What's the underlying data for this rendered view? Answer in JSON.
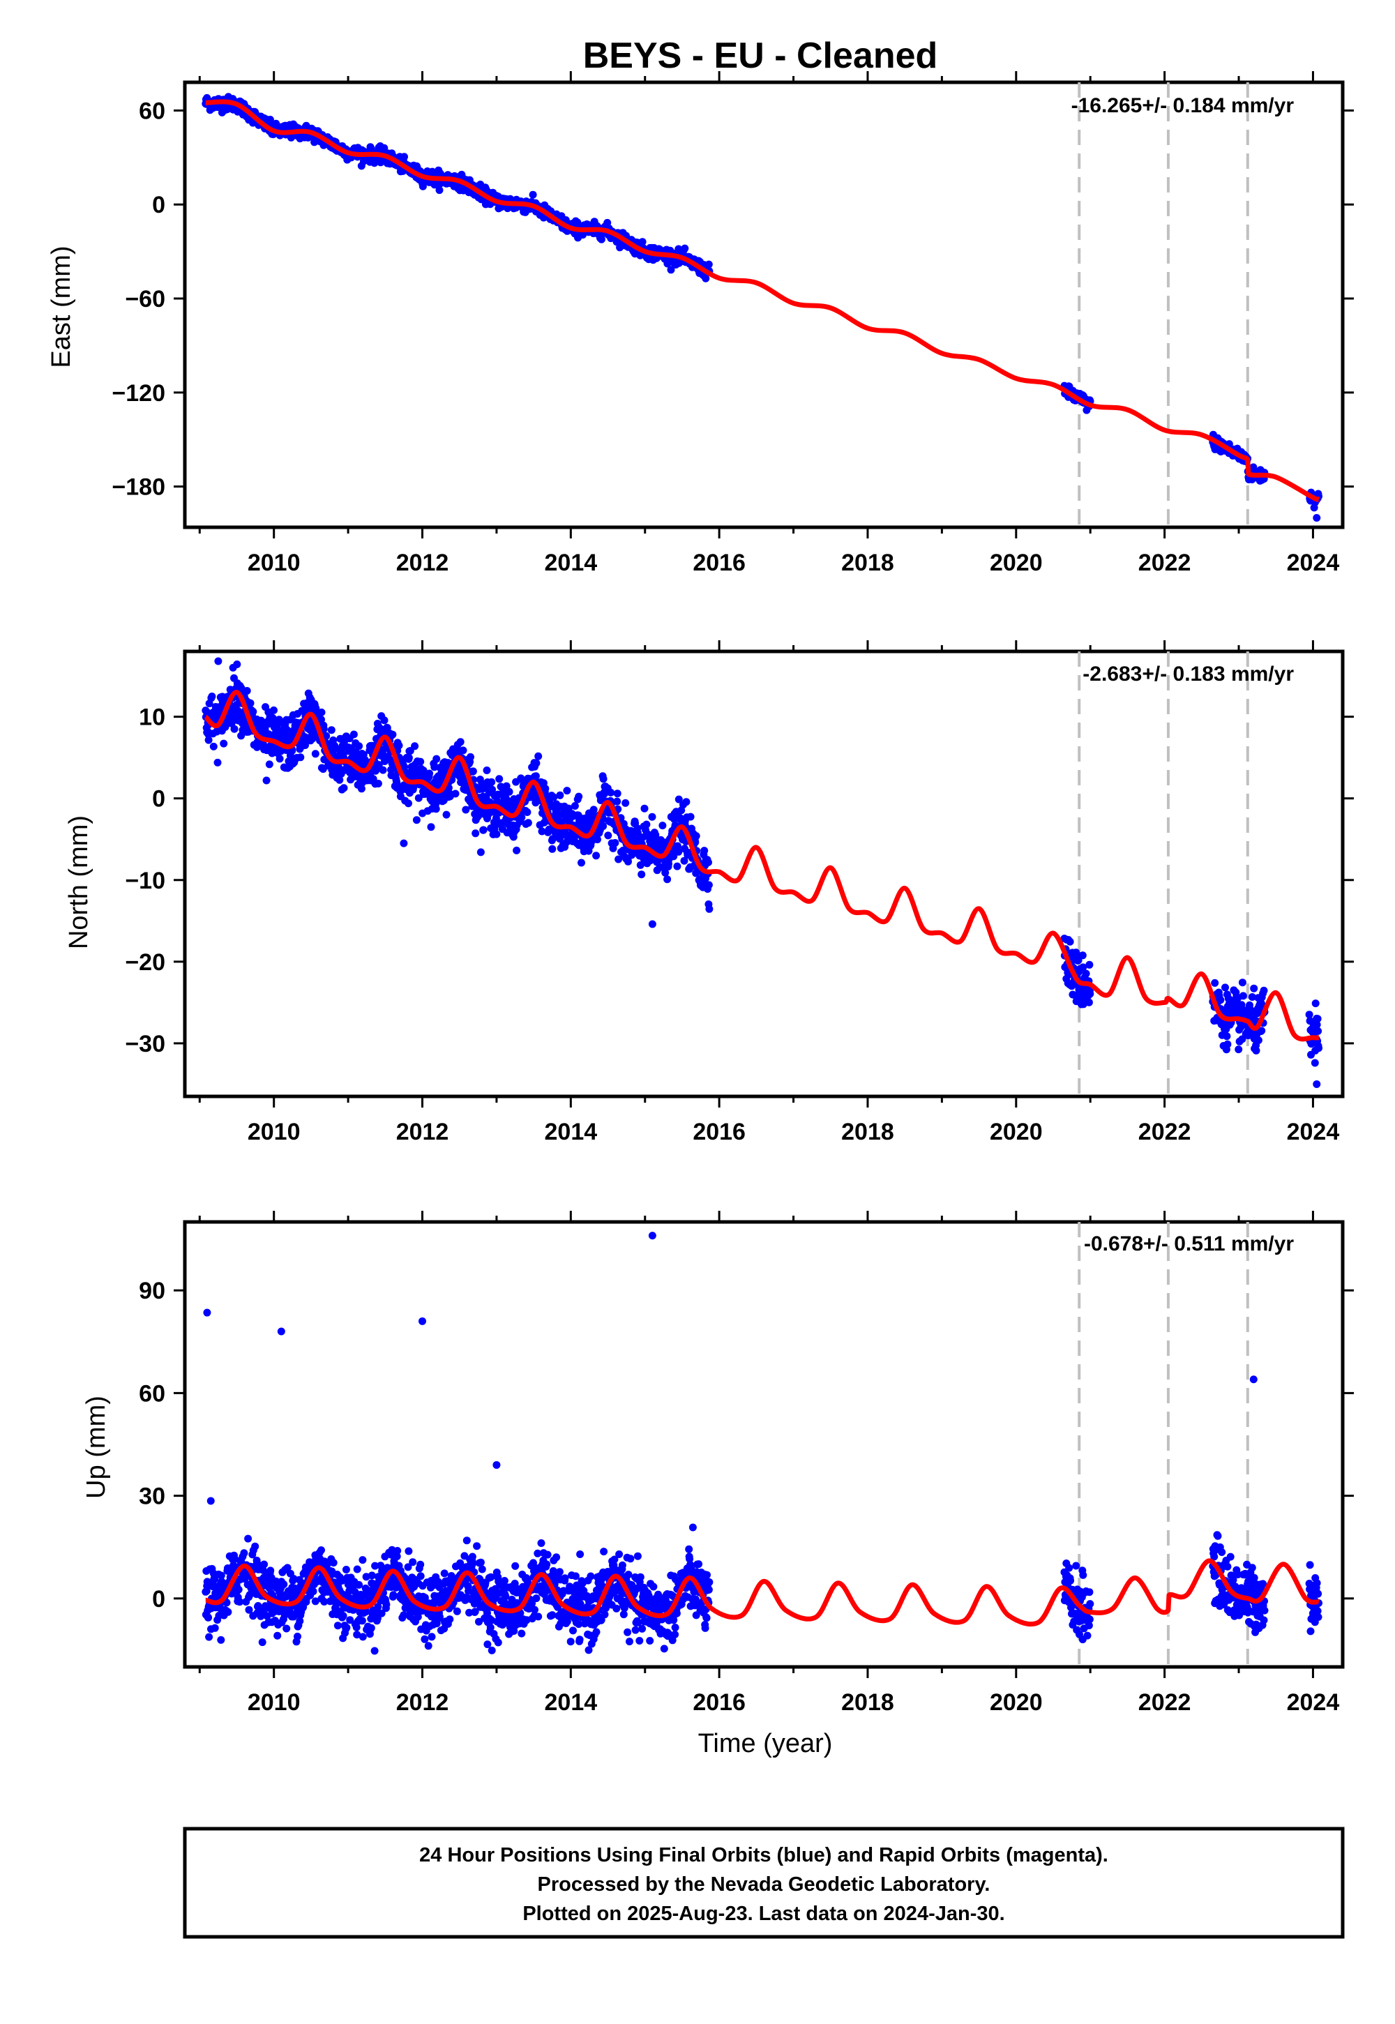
{
  "title": "BEYS  - EU - Cleaned",
  "xlabel": "Time (year)",
  "x_ticks": [
    "2010",
    "2012",
    "2014",
    "2016",
    "2018",
    "2020",
    "2022",
    "2024"
  ],
  "colors": {
    "final_orbits": "#0000ff",
    "model": "#ff0000",
    "breaks": "#c0c0c0",
    "frame": "#000000"
  },
  "footer": {
    "line1": "24 Hour Positions Using Final Orbits (blue) and Rapid Orbits (magenta).",
    "line2": "Processed by the Nevada Geodetic Laboratory.",
    "line3": "Plotted on 2025-Aug-23. Last data on 2024-Jan-30."
  },
  "chart_data": [
    {
      "type": "scatter",
      "panel": "east",
      "ylabel": "East (mm)",
      "rate_text": "-16.265+/- 0.184 mm/yr",
      "rate_mm_per_yr": -16.265,
      "xlim": [
        2008.8,
        2024.4
      ],
      "ylim": [
        -206,
        78
      ],
      "y_ticks": [
        60,
        0,
        -60,
        -120,
        -180
      ],
      "y_tick_labels": [
        "60",
        "0",
        "−60",
        "−120",
        "−180"
      ],
      "break_years": [
        2020.85,
        2022.05,
        2023.12
      ],
      "data_segments": [
        [
          2009.08,
          2015.87
        ],
        [
          2020.65,
          2021.0
        ],
        [
          2022.65,
          2023.35
        ],
        [
          2023.95,
          2024.08
        ]
      ],
      "model_points": [
        [
          2009.08,
          65
        ],
        [
          2009.5,
          64
        ],
        [
          2010.0,
          47
        ],
        [
          2010.5,
          46
        ],
        [
          2011.0,
          33
        ],
        [
          2011.5,
          31
        ],
        [
          2012.0,
          18
        ],
        [
          2012.5,
          15
        ],
        [
          2013.0,
          2
        ],
        [
          2013.5,
          -1
        ],
        [
          2014.0,
          -15
        ],
        [
          2014.5,
          -17
        ],
        [
          2015.0,
          -30
        ],
        [
          2015.5,
          -34
        ],
        [
          2016.0,
          -47
        ],
        [
          2016.5,
          -50
        ],
        [
          2017.0,
          -63
        ],
        [
          2017.5,
          -66
        ],
        [
          2018.0,
          -79
        ],
        [
          2018.5,
          -82
        ],
        [
          2019.0,
          -95
        ],
        [
          2019.5,
          -99
        ],
        [
          2020.0,
          -111
        ],
        [
          2020.5,
          -115
        ],
        [
          2021.0,
          -128
        ],
        [
          2021.5,
          -131
        ],
        [
          2022.0,
          -144
        ],
        [
          2022.5,
          -147
        ],
        [
          2023.0,
          -160
        ],
        [
          2023.12,
          -163
        ],
        [
          2023.13,
          -172
        ],
        [
          2023.5,
          -174
        ],
        [
          2024.0,
          -187
        ],
        [
          2024.08,
          -188
        ]
      ],
      "outliers": [
        [
          2024.05,
          -200
        ]
      ]
    },
    {
      "type": "scatter",
      "panel": "north",
      "ylabel": "North (mm)",
      "rate_text": "-2.683+/- 0.183 mm/yr",
      "rate_mm_per_yr": -2.683,
      "xlim": [
        2008.8,
        2024.4
      ],
      "ylim": [
        -36.5,
        18
      ],
      "y_ticks": [
        10,
        0,
        -10,
        -20,
        -30
      ],
      "y_tick_labels": [
        "10",
        "0",
        "−10",
        "−20",
        "−30"
      ],
      "break_years": [
        2020.85,
        2022.05,
        2023.12
      ],
      "data_segments": [
        [
          2009.08,
          2015.87
        ],
        [
          2020.65,
          2021.0
        ],
        [
          2022.65,
          2023.35
        ],
        [
          2023.95,
          2024.08
        ]
      ],
      "model_points": [
        [
          2009.08,
          10
        ],
        [
          2009.25,
          9
        ],
        [
          2009.5,
          13
        ],
        [
          2009.75,
          8
        ],
        [
          2010.0,
          7
        ],
        [
          2010.25,
          6.5
        ],
        [
          2010.5,
          10.3
        ],
        [
          2010.75,
          5
        ],
        [
          2011.0,
          4.5
        ],
        [
          2011.25,
          3.5
        ],
        [
          2011.5,
          7.5
        ],
        [
          2011.75,
          2.5
        ],
        [
          2012.0,
          2
        ],
        [
          2012.25,
          1
        ],
        [
          2012.5,
          5
        ],
        [
          2012.75,
          -0.5
        ],
        [
          2013.0,
          -1
        ],
        [
          2013.25,
          -2
        ],
        [
          2013.5,
          2
        ],
        [
          2013.75,
          -3
        ],
        [
          2014.0,
          -3.5
        ],
        [
          2014.25,
          -4.5
        ],
        [
          2014.5,
          -0.5
        ],
        [
          2014.75,
          -5.5
        ],
        [
          2015.0,
          -6
        ],
        [
          2015.25,
          -7
        ],
        [
          2015.5,
          -3.5
        ],
        [
          2015.75,
          -8.5
        ],
        [
          2016.0,
          -9
        ],
        [
          2016.25,
          -10
        ],
        [
          2016.5,
          -6
        ],
        [
          2016.75,
          -11
        ],
        [
          2017.0,
          -11.5
        ],
        [
          2017.25,
          -12.5
        ],
        [
          2017.5,
          -8.5
        ],
        [
          2017.75,
          -13.5
        ],
        [
          2018.0,
          -14
        ],
        [
          2018.25,
          -15
        ],
        [
          2018.5,
          -11
        ],
        [
          2018.75,
          -16
        ],
        [
          2019.0,
          -16.5
        ],
        [
          2019.25,
          -17.5
        ],
        [
          2019.5,
          -13.5
        ],
        [
          2019.75,
          -18.5
        ],
        [
          2020.0,
          -19
        ],
        [
          2020.25,
          -20
        ],
        [
          2020.5,
          -16.5
        ],
        [
          2020.75,
          -21
        ],
        [
          2020.85,
          -22.5
        ],
        [
          2021.0,
          -22.8
        ],
        [
          2021.25,
          -24
        ],
        [
          2021.5,
          -19.5
        ],
        [
          2021.75,
          -24.5
        ],
        [
          2022.0,
          -25
        ],
        [
          2022.05,
          -24.5
        ],
        [
          2022.25,
          -25.3
        ],
        [
          2022.5,
          -21.5
        ],
        [
          2022.75,
          -26.5
        ],
        [
          2023.0,
          -27
        ],
        [
          2023.12,
          -27.3
        ],
        [
          2023.25,
          -28
        ],
        [
          2023.5,
          -23.8
        ],
        [
          2023.75,
          -29
        ],
        [
          2024.0,
          -29.3
        ],
        [
          2024.08,
          -29.3
        ]
      ],
      "outliers": [
        [
          2009.25,
          16.8
        ],
        [
          2009.9,
          2.2
        ],
        [
          2011.75,
          -5.5
        ],
        [
          2015.1,
          -15.4
        ],
        [
          2024.05,
          -35
        ]
      ]
    },
    {
      "type": "scatter",
      "panel": "up",
      "ylabel": "Up (mm)",
      "rate_text": "-0.678+/- 0.511 mm/yr",
      "rate_mm_per_yr": -0.678,
      "xlim": [
        2008.8,
        2024.4
      ],
      "ylim": [
        -20,
        110
      ],
      "y_ticks": [
        90,
        60,
        30,
        0
      ],
      "y_tick_labels": [
        "90",
        "60",
        "30",
        "0"
      ],
      "break_years": [
        2020.85,
        2022.05,
        2023.12
      ],
      "data_segments": [
        [
          2009.08,
          2015.87
        ],
        [
          2020.65,
          2021.0
        ],
        [
          2022.65,
          2023.35
        ],
        [
          2023.95,
          2024.08
        ]
      ],
      "model_points": [
        [
          2009.08,
          -0.5
        ],
        [
          2009.3,
          -0.5
        ],
        [
          2009.6,
          9.5
        ],
        [
          2009.9,
          0.5
        ],
        [
          2010.3,
          -1
        ],
        [
          2010.6,
          9
        ],
        [
          2010.9,
          0
        ],
        [
          2011.3,
          -2
        ],
        [
          2011.6,
          8
        ],
        [
          2011.9,
          -1
        ],
        [
          2012.3,
          -2.5
        ],
        [
          2012.6,
          7.5
        ],
        [
          2012.9,
          -1.5
        ],
        [
          2013.3,
          -3
        ],
        [
          2013.6,
          7
        ],
        [
          2013.9,
          -2
        ],
        [
          2014.3,
          -4
        ],
        [
          2014.6,
          6.5
        ],
        [
          2014.9,
          -2.5
        ],
        [
          2015.3,
          -4.5
        ],
        [
          2015.6,
          6
        ],
        [
          2015.9,
          -3
        ],
        [
          2016.3,
          -5
        ],
        [
          2016.6,
          5
        ],
        [
          2016.9,
          -3.5
        ],
        [
          2017.3,
          -5.5
        ],
        [
          2017.6,
          4.5
        ],
        [
          2017.9,
          -4
        ],
        [
          2018.3,
          -6
        ],
        [
          2018.6,
          4
        ],
        [
          2018.9,
          -4.5
        ],
        [
          2019.3,
          -6.5
        ],
        [
          2019.6,
          3.5
        ],
        [
          2019.9,
          -5
        ],
        [
          2020.3,
          -7
        ],
        [
          2020.6,
          3
        ],
        [
          2020.85,
          -2
        ],
        [
          2021.0,
          -4
        ],
        [
          2021.3,
          -3
        ],
        [
          2021.6,
          6
        ],
        [
          2021.9,
          -3
        ],
        [
          2022.05,
          -3.5
        ],
        [
          2022.06,
          1
        ],
        [
          2022.3,
          1
        ],
        [
          2022.6,
          11
        ],
        [
          2022.9,
          2
        ],
        [
          2023.12,
          0
        ],
        [
          2023.3,
          0
        ],
        [
          2023.6,
          10
        ],
        [
          2023.9,
          0
        ],
        [
          2024.08,
          -1
        ]
      ],
      "outliers": [
        [
          2009.1,
          83.5
        ],
        [
          2010.1,
          78
        ],
        [
          2012.0,
          81
        ],
        [
          2013.0,
          39
        ],
        [
          2015.1,
          106
        ],
        [
          2023.2,
          64
        ],
        [
          2009.15,
          28.5
        ]
      ]
    }
  ]
}
